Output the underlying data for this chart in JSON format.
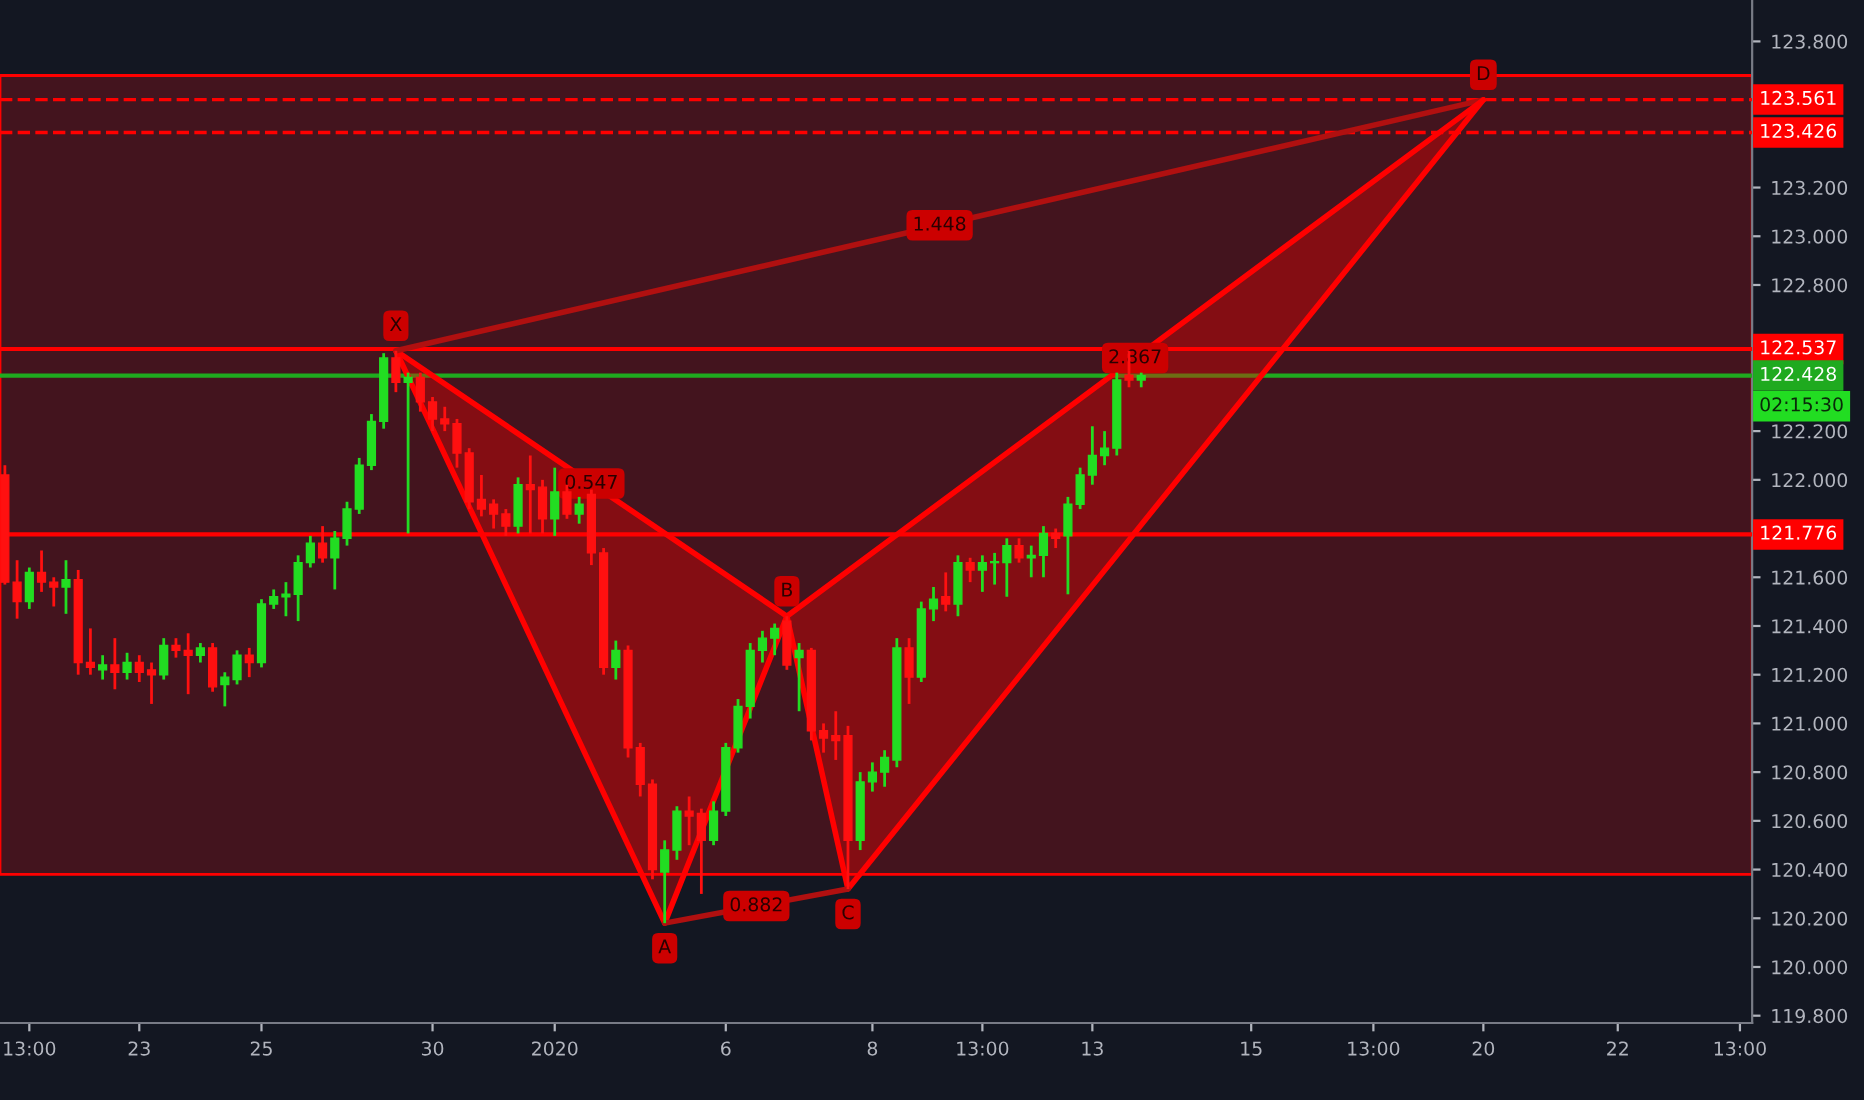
{
  "chart_data": {
    "type": "candlestick",
    "categories": [
      null,
      null,
      "13:00",
      null,
      null,
      null,
      null,
      null,
      null,
      null,
      null,
      "23",
      null,
      null,
      null,
      null,
      null,
      null,
      null,
      null,
      null,
      "25",
      null,
      null,
      null,
      null,
      null,
      null,
      null,
      null,
      null,
      null,
      null,
      null,
      null,
      "30",
      null,
      null,
      null,
      null,
      null,
      null,
      null,
      null,
      null,
      "2020",
      null,
      null,
      null,
      null,
      null,
      null,
      null,
      null,
      null,
      null,
      null,
      null,
      null,
      "6",
      null,
      null,
      null,
      null,
      null,
      null,
      null,
      null,
      null,
      null,
      null,
      "8",
      null,
      null,
      null,
      null,
      null,
      null,
      null,
      null,
      "13:00",
      null,
      null,
      null,
      null,
      null,
      null,
      null,
      null,
      "13",
      null,
      null,
      null,
      null,
      null,
      null,
      null,
      null,
      null,
      null,
      null,
      null,
      "15",
      null,
      null,
      null,
      null,
      null,
      null,
      null,
      null,
      null,
      "13:00",
      null,
      null,
      null,
      null,
      null,
      null,
      null,
      null,
      "20",
      null,
      null,
      null,
      null,
      null,
      null,
      null,
      null,
      null,
      null,
      "22",
      null,
      null,
      null,
      null,
      null,
      null,
      null,
      null,
      null,
      "13:00"
    ],
    "ohlc": [
      [
        122.02,
        122.06,
        121.57,
        121.58
      ],
      [
        121.58,
        121.67,
        121.43,
        121.5
      ],
      [
        121.5,
        121.64,
        121.47,
        121.62
      ],
      [
        121.62,
        121.71,
        121.54,
        121.58
      ],
      [
        121.58,
        121.6,
        121.48,
        121.56
      ],
      [
        121.56,
        121.67,
        121.45,
        121.59
      ],
      [
        121.59,
        121.63,
        121.2,
        121.25
      ],
      [
        121.25,
        121.39,
        121.2,
        121.23
      ],
      [
        121.22,
        121.28,
        121.18,
        121.24
      ],
      [
        121.24,
        121.35,
        121.14,
        121.21
      ],
      [
        121.21,
        121.29,
        121.18,
        121.25
      ],
      [
        121.25,
        121.28,
        121.17,
        121.21
      ],
      [
        121.22,
        121.25,
        121.08,
        121.2
      ],
      [
        121.2,
        121.35,
        121.18,
        121.32
      ],
      [
        121.32,
        121.35,
        121.27,
        121.3
      ],
      [
        121.3,
        121.37,
        121.12,
        121.28
      ],
      [
        121.28,
        121.33,
        121.25,
        121.31
      ],
      [
        121.31,
        121.33,
        121.13,
        121.15
      ],
      [
        121.16,
        121.21,
        121.07,
        121.19
      ],
      [
        121.18,
        121.3,
        121.16,
        121.28
      ],
      [
        121.28,
        121.31,
        121.19,
        121.25
      ],
      [
        121.25,
        121.51,
        121.23,
        121.49
      ],
      [
        121.49,
        121.55,
        121.47,
        121.52
      ],
      [
        121.52,
        121.58,
        121.44,
        121.53
      ],
      [
        121.53,
        121.69,
        121.42,
        121.66
      ],
      [
        121.66,
        121.77,
        121.64,
        121.74
      ],
      [
        121.74,
        121.81,
        121.66,
        121.68
      ],
      [
        121.68,
        121.79,
        121.55,
        121.76
      ],
      [
        121.76,
        121.91,
        121.73,
        121.88
      ],
      [
        121.88,
        122.09,
        121.86,
        122.06
      ],
      [
        122.06,
        122.27,
        122.04,
        122.24
      ],
      [
        122.24,
        122.52,
        122.21,
        122.5
      ],
      [
        122.5,
        122.53,
        122.36,
        122.4
      ],
      [
        122.4,
        122.44,
        121.78,
        122.42
      ],
      [
        122.42,
        122.44,
        122.28,
        122.32
      ],
      [
        122.32,
        122.34,
        122.2,
        122.25
      ],
      [
        122.25,
        122.3,
        122.2,
        122.23
      ],
      [
        122.23,
        122.25,
        122.05,
        122.11
      ],
      [
        122.11,
        122.13,
        121.88,
        121.91
      ],
      [
        121.92,
        122.02,
        121.85,
        121.88
      ],
      [
        121.9,
        121.92,
        121.8,
        121.86
      ],
      [
        121.86,
        121.88,
        121.77,
        121.81
      ],
      [
        121.81,
        122.01,
        121.78,
        121.98
      ],
      [
        121.98,
        122.1,
        121.78,
        121.96
      ],
      [
        121.97,
        122.0,
        121.78,
        121.84
      ],
      [
        121.84,
        122.05,
        121.77,
        121.95
      ],
      [
        121.95,
        121.98,
        121.84,
        121.86
      ],
      [
        121.86,
        121.93,
        121.82,
        121.9
      ],
      [
        121.94,
        121.96,
        121.65,
        121.7
      ],
      [
        121.7,
        121.72,
        121.2,
        121.23
      ],
      [
        121.23,
        121.34,
        121.18,
        121.3
      ],
      [
        121.3,
        121.32,
        120.86,
        120.9
      ],
      [
        120.9,
        120.92,
        120.7,
        120.75
      ],
      [
        120.75,
        120.77,
        120.36,
        120.4
      ],
      [
        120.39,
        120.52,
        120.18,
        120.48
      ],
      [
        120.48,
        120.66,
        120.44,
        120.64
      ],
      [
        120.64,
        120.7,
        120.5,
        120.62
      ],
      [
        120.63,
        120.65,
        120.3,
        120.52
      ],
      [
        120.52,
        120.68,
        120.5,
        120.64
      ],
      [
        120.64,
        120.92,
        120.62,
        120.9
      ],
      [
        120.9,
        121.1,
        120.88,
        121.07
      ],
      [
        121.07,
        121.33,
        121.02,
        121.3
      ],
      [
        121.3,
        121.38,
        121.25,
        121.35
      ],
      [
        121.35,
        121.41,
        121.28,
        121.39
      ],
      [
        121.42,
        121.44,
        121.22,
        121.24
      ],
      [
        121.27,
        121.33,
        121.05,
        121.3
      ],
      [
        121.3,
        121.31,
        120.93,
        120.97
      ],
      [
        120.97,
        121.0,
        120.88,
        120.94
      ],
      [
        120.95,
        121.05,
        120.85,
        120.93
      ],
      [
        120.95,
        120.99,
        120.32,
        120.52
      ],
      [
        120.52,
        120.8,
        120.48,
        120.76
      ],
      [
        120.76,
        120.84,
        120.72,
        120.8
      ],
      [
        120.8,
        120.89,
        120.74,
        120.86
      ],
      [
        120.85,
        121.35,
        120.82,
        121.31
      ],
      [
        121.31,
        121.35,
        121.08,
        121.19
      ],
      [
        121.19,
        121.5,
        121.17,
        121.47
      ],
      [
        121.47,
        121.56,
        121.42,
        121.51
      ],
      [
        121.52,
        121.62,
        121.46,
        121.49
      ],
      [
        121.49,
        121.69,
        121.44,
        121.66
      ],
      [
        121.66,
        121.68,
        121.58,
        121.63
      ],
      [
        121.63,
        121.69,
        121.54,
        121.66
      ],
      [
        121.66,
        121.7,
        121.57,
        121.66
      ],
      [
        121.66,
        121.76,
        121.52,
        121.73
      ],
      [
        121.73,
        121.76,
        121.66,
        121.68
      ],
      [
        121.68,
        121.73,
        121.6,
        121.69
      ],
      [
        121.69,
        121.81,
        121.6,
        121.78
      ],
      [
        121.78,
        121.8,
        121.72,
        121.76
      ],
      [
        121.77,
        121.93,
        121.53,
        121.9
      ],
      [
        121.9,
        122.05,
        121.88,
        122.02
      ],
      [
        122.02,
        122.22,
        121.98,
        122.1
      ],
      [
        122.1,
        122.2,
        122.06,
        122.13
      ],
      [
        122.13,
        122.44,
        122.1,
        122.41
      ],
      [
        122.43,
        122.53,
        122.38,
        122.41
      ],
      [
        122.41,
        122.44,
        122.38,
        122.428
      ],
      null,
      null,
      null,
      null,
      null,
      null,
      null,
      null,
      null,
      null,
      null,
      null,
      null,
      null,
      null,
      null,
      null,
      null,
      null,
      null,
      null,
      null,
      null,
      null,
      null,
      null,
      null,
      null,
      null,
      null,
      null,
      null,
      null,
      null,
      null,
      null,
      null,
      null,
      null,
      null,
      null,
      null,
      null,
      null,
      null,
      null,
      null,
      null,
      null
    ],
    "series": [
      {
        "type": "line",
        "color": "#ff0000",
        "values": [
          null,
          null,
          null,
          null,
          null,
          null,
          null,
          null,
          null,
          null,
          null,
          null,
          null,
          null,
          null,
          null,
          null,
          null,
          null,
          null,
          null,
          null,
          null,
          null,
          null,
          null,
          null,
          null,
          null,
          null,
          null,
          null,
          122.53,
          null,
          null,
          null,
          null,
          null,
          null,
          null,
          null,
          null,
          null,
          null,
          null,
          null,
          null,
          null,
          null,
          null,
          null,
          null,
          null,
          null,
          120.18,
          null,
          null,
          null,
          null,
          null,
          null,
          null,
          null,
          null,
          121.44,
          null,
          null,
          null,
          null,
          120.32,
          null,
          null,
          null,
          null,
          null,
          null,
          null,
          null,
          null,
          null,
          null,
          null,
          null,
          null,
          null,
          null,
          null,
          null,
          null,
          null,
          null,
          null,
          null,
          null,
          null,
          null,
          null,
          null,
          null,
          null,
          null,
          null,
          null,
          null,
          null,
          null,
          null,
          null,
          null,
          null,
          null,
          null,
          null,
          null,
          null,
          null,
          null,
          null,
          null,
          null,
          null,
          123.56,
          null,
          null,
          null,
          null,
          null,
          null,
          null,
          null,
          null,
          null,
          null,
          null,
          null,
          null,
          null,
          null,
          null,
          null,
          null,
          null,
          null
        ]
      },
      {
        "type": "line",
        "color": "#ff0000",
        "values": [
          null,
          null,
          null,
          null,
          null,
          null,
          null,
          null,
          null,
          null,
          null,
          null,
          null,
          null,
          null,
          null,
          null,
          null,
          null,
          null,
          null,
          null,
          null,
          null,
          null,
          null,
          null,
          null,
          null,
          null,
          null,
          null,
          122.53,
          null,
          null,
          null,
          null,
          null,
          null,
          null,
          null,
          null,
          null,
          null,
          null,
          null,
          null,
          null,
          null,
          null,
          null,
          null,
          null,
          null,
          null,
          null,
          null,
          null,
          null,
          null,
          null,
          null,
          null,
          null,
          121.44,
          null,
          null,
          null,
          null,
          null,
          null,
          null,
          null,
          null,
          null,
          null,
          null,
          null,
          null,
          null,
          null,
          null,
          null,
          null,
          null,
          null,
          null,
          null,
          null,
          null,
          null,
          null,
          null,
          null,
          null,
          null,
          null,
          null,
          null,
          null,
          null,
          null,
          null,
          null,
          null,
          null,
          null,
          null,
          null,
          null,
          null,
          null,
          null,
          null,
          null,
          null,
          null,
          null,
          null,
          null,
          null,
          null,
          null,
          null,
          null,
          null,
          null,
          null,
          null,
          null,
          null,
          null,
          null,
          null,
          null,
          null,
          null,
          null,
          null,
          null,
          null,
          null,
          null
        ]
      },
      {
        "type": "line",
        "color": "#b01010",
        "values": [
          null,
          null,
          null,
          null,
          null,
          null,
          null,
          null,
          null,
          null,
          null,
          null,
          null,
          null,
          null,
          null,
          null,
          null,
          null,
          null,
          null,
          null,
          null,
          null,
          null,
          null,
          null,
          null,
          null,
          null,
          null,
          null,
          null,
          null,
          null,
          null,
          null,
          null,
          null,
          null,
          null,
          null,
          null,
          null,
          null,
          null,
          null,
          null,
          null,
          null,
          null,
          null,
          null,
          null,
          120.18,
          null,
          null,
          null,
          null,
          null,
          null,
          null,
          null,
          null,
          null,
          null,
          null,
          null,
          null,
          120.32,
          null,
          null,
          null,
          null,
          null,
          null,
          null,
          null,
          null,
          null,
          null,
          null,
          null,
          null,
          null,
          null,
          null,
          null,
          null,
          null,
          null,
          null,
          null,
          null,
          null,
          null,
          null,
          null,
          null,
          null,
          null,
          null,
          null,
          null,
          null,
          null,
          null,
          null,
          null,
          null,
          null,
          null,
          null,
          null,
          null,
          null,
          null,
          null,
          null,
          null,
          null,
          null,
          null,
          null,
          null,
          null,
          null,
          null,
          null,
          null,
          null,
          null,
          null,
          null,
          null,
          null,
          null,
          null,
          null,
          null,
          null,
          null,
          null
        ]
      },
      {
        "type": "line",
        "color": "#b01010",
        "values": [
          null,
          null,
          null,
          null,
          null,
          null,
          null,
          null,
          null,
          null,
          null,
          null,
          null,
          null,
          null,
          null,
          null,
          null,
          null,
          null,
          null,
          null,
          null,
          null,
          null,
          null,
          null,
          null,
          null,
          null,
          null,
          null,
          122.53,
          null,
          null,
          null,
          null,
          null,
          null,
          null,
          null,
          null,
          null,
          null,
          null,
          null,
          null,
          null,
          null,
          null,
          null,
          null,
          null,
          null,
          null,
          null,
          null,
          null,
          null,
          null,
          null,
          null,
          null,
          null,
          null,
          null,
          null,
          null,
          null,
          null,
          null,
          null,
          null,
          null,
          null,
          null,
          null,
          null,
          null,
          null,
          null,
          null,
          null,
          null,
          null,
          null,
          null,
          null,
          null,
          null,
          null,
          null,
          null,
          null,
          null,
          null,
          null,
          null,
          null,
          null,
          null,
          null,
          null,
          null,
          null,
          null,
          null,
          null,
          null,
          null,
          null,
          null,
          null,
          null,
          null,
          null,
          null,
          null,
          null,
          null,
          null,
          123.56,
          null,
          null,
          null,
          null,
          null,
          null,
          null,
          null,
          null,
          null,
          null,
          null,
          null,
          null,
          null,
          null,
          null,
          null,
          null,
          null,
          null
        ]
      },
      {
        "type": "line",
        "color": "#ff0000",
        "values": [
          null,
          null,
          null,
          null,
          null,
          null,
          null,
          null,
          null,
          null,
          null,
          null,
          null,
          null,
          null,
          null,
          null,
          null,
          null,
          null,
          null,
          null,
          null,
          null,
          null,
          null,
          null,
          null,
          null,
          null,
          null,
          null,
          null,
          null,
          null,
          null,
          null,
          null,
          null,
          null,
          null,
          null,
          null,
          null,
          null,
          null,
          null,
          null,
          null,
          null,
          null,
          null,
          null,
          null,
          null,
          null,
          null,
          null,
          null,
          null,
          null,
          null,
          null,
          null,
          121.44,
          null,
          null,
          null,
          null,
          null,
          null,
          null,
          null,
          null,
          null,
          null,
          null,
          null,
          null,
          null,
          null,
          null,
          null,
          null,
          null,
          null,
          null,
          null,
          null,
          null,
          null,
          null,
          null,
          null,
          null,
          null,
          null,
          null,
          null,
          null,
          null,
          null,
          null,
          null,
          null,
          null,
          null,
          null,
          null,
          null,
          null,
          null,
          null,
          null,
          null,
          null,
          null,
          null,
          null,
          null,
          null,
          123.56,
          null,
          null,
          null,
          null,
          null,
          null,
          null,
          null,
          null,
          null,
          null,
          null,
          null,
          null,
          null,
          null,
          null,
          null,
          null,
          null,
          null
        ]
      }
    ],
    "ylim": [
      119.77,
      123.97
    ],
    "yticks": [
      {
        "value": 119.8,
        "label": "119.800"
      },
      {
        "value": 120.0,
        "label": "120.000"
      },
      {
        "value": 120.2,
        "label": "120.200"
      },
      {
        "value": 120.4,
        "label": "120.400"
      },
      {
        "value": 120.6,
        "label": "120.600"
      },
      {
        "value": 120.8,
        "label": "120.800"
      },
      {
        "value": 121.0,
        "label": "121.000"
      },
      {
        "value": 121.2,
        "label": "121.200"
      },
      {
        "value": 121.4,
        "label": "121.400"
      },
      {
        "value": 121.6,
        "label": "121.600"
      },
      {
        "value": 122.0,
        "label": "122.000"
      },
      {
        "value": 122.2,
        "label": "122.200"
      },
      {
        "value": 122.8,
        "label": "122.800"
      },
      {
        "value": 123.0,
        "label": "123.000"
      },
      {
        "value": 123.2,
        "label": "123.200"
      },
      {
        "value": 123.8,
        "label": "123.800"
      }
    ],
    "bands": [
      {
        "axis": "y",
        "from": 120.38,
        "to": 123.66,
        "color": "#43141e"
      }
    ],
    "ref_lines": [
      {
        "axis": "y",
        "value": 123.561,
        "label": "123.561",
        "color": "#ff0000",
        "line_style": "dashed"
      },
      {
        "axis": "y",
        "value": 123.426,
        "label": "123.426",
        "color": "#ff0000",
        "line_style": "dashed"
      },
      {
        "axis": "y",
        "value": 122.537,
        "label": "122.537",
        "color": "#ff0000",
        "line_style": "solid"
      },
      {
        "axis": "y",
        "value": 121.776,
        "label": "121.776",
        "color": "#ff0000",
        "line_style": "solid"
      },
      {
        "axis": "y",
        "value": 122.428,
        "label": "122.428",
        "color": "#1faa1f",
        "line_style": "solid"
      }
    ],
    "annotations": [
      "X",
      "A",
      "B",
      "C",
      "D",
      "0.547",
      "0.882",
      "1.448",
      "2.867",
      "02:15:30"
    ],
    "grid": false
  }
}
